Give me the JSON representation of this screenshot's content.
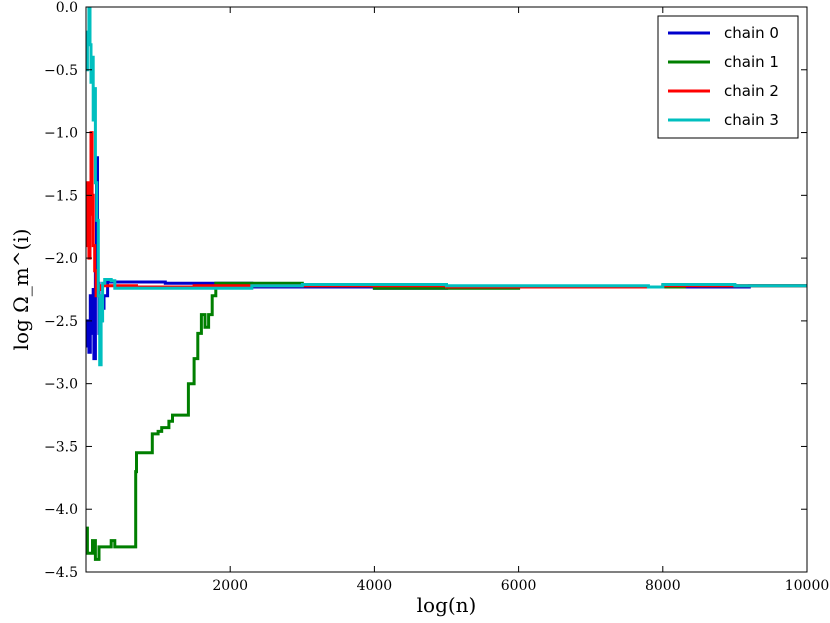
{
  "chart_data": {
    "type": "line",
    "xlabel": "log(n)",
    "ylabel": "log Ω_m^(i)",
    "xlim": [
      0,
      10000
    ],
    "ylim": [
      -4.5,
      0.0
    ],
    "xticks": [
      2000,
      4000,
      6000,
      8000,
      10000
    ],
    "xtick_labels": [
      "2000",
      "4000",
      "6000",
      "8000",
      "10000"
    ],
    "yticks": [
      0.0,
      -0.5,
      -1.0,
      -1.5,
      -2.0,
      -2.5,
      -3.0,
      -3.5,
      -4.0,
      -4.5
    ],
    "ytick_labels": [
      "0.0",
      "−0.5",
      "−1.0",
      "−1.5",
      "−2.0",
      "−2.5",
      "−3.0",
      "−3.5",
      "−4.0",
      "−4.5"
    ],
    "grid": false,
    "legend_position": "top-right",
    "series": [
      {
        "name": "chain 0",
        "color": "#0000cc",
        "points": [
          [
            0,
            -2.7
          ],
          [
            20,
            -2.5
          ],
          [
            40,
            -2.75
          ],
          [
            60,
            -2.3
          ],
          [
            80,
            -2.6
          ],
          [
            100,
            -2.25
          ],
          [
            110,
            -2.8
          ],
          [
            130,
            -2.0
          ],
          [
            145,
            -1.2
          ],
          [
            160,
            -2.2
          ],
          [
            180,
            -2.6
          ],
          [
            200,
            -2.5
          ],
          [
            220,
            -2.4
          ],
          [
            250,
            -2.3
          ],
          [
            300,
            -2.19
          ],
          [
            1000,
            -2.19
          ],
          [
            1100,
            -2.2
          ],
          [
            2000,
            -2.2
          ],
          [
            2300,
            -2.23
          ],
          [
            4000,
            -2.24
          ],
          [
            5000,
            -2.23
          ],
          [
            7000,
            -2.23
          ],
          [
            9200,
            -2.22
          ],
          [
            10000,
            -2.22
          ]
        ]
      },
      {
        "name": "chain 1",
        "color": "#007f00",
        "points": [
          [
            0,
            -4.15
          ],
          [
            20,
            -4.35
          ],
          [
            60,
            -4.35
          ],
          [
            90,
            -4.25
          ],
          [
            130,
            -4.4
          ],
          [
            180,
            -4.3
          ],
          [
            300,
            -4.3
          ],
          [
            350,
            -4.25
          ],
          [
            400,
            -4.3
          ],
          [
            650,
            -4.3
          ],
          [
            690,
            -3.7
          ],
          [
            700,
            -3.55
          ],
          [
            900,
            -3.55
          ],
          [
            920,
            -3.4
          ],
          [
            1000,
            -3.38
          ],
          [
            1050,
            -3.35
          ],
          [
            1150,
            -3.3
          ],
          [
            1200,
            -3.25
          ],
          [
            1400,
            -3.25
          ],
          [
            1420,
            -3.0
          ],
          [
            1500,
            -2.8
          ],
          [
            1550,
            -2.6
          ],
          [
            1600,
            -2.45
          ],
          [
            1650,
            -2.55
          ],
          [
            1700,
            -2.45
          ],
          [
            1750,
            -2.3
          ],
          [
            1800,
            -2.2
          ],
          [
            2000,
            -2.2
          ],
          [
            2900,
            -2.2
          ],
          [
            3000,
            -2.22
          ],
          [
            4000,
            -2.24
          ],
          [
            5000,
            -2.24
          ],
          [
            6000,
            -2.23
          ],
          [
            8300,
            -2.21
          ],
          [
            8500,
            -2.22
          ],
          [
            10000,
            -2.22
          ]
        ]
      },
      {
        "name": "chain 2",
        "color": "#ff0000",
        "points": [
          [
            0,
            -1.9
          ],
          [
            20,
            -1.4
          ],
          [
            40,
            -2.0
          ],
          [
            55,
            -1.65
          ],
          [
            70,
            -1.0
          ],
          [
            85,
            -1.5
          ],
          [
            100,
            -1.9
          ],
          [
            120,
            -2.1
          ],
          [
            140,
            -2.3
          ],
          [
            160,
            -2.25
          ],
          [
            200,
            -2.22
          ],
          [
            300,
            -2.22
          ],
          [
            700,
            -2.23
          ],
          [
            1500,
            -2.22
          ],
          [
            3000,
            -2.22
          ],
          [
            5000,
            -2.23
          ],
          [
            6900,
            -2.23
          ],
          [
            8000,
            -2.22
          ],
          [
            10000,
            -2.22
          ]
        ]
      },
      {
        "name": "chain 3",
        "color": "#00bfbf",
        "points": [
          [
            0,
            -0.5
          ],
          [
            20,
            -0.2
          ],
          [
            40,
            0.0
          ],
          [
            55,
            -0.3
          ],
          [
            70,
            -0.6
          ],
          [
            85,
            -0.4
          ],
          [
            100,
            -0.9
          ],
          [
            115,
            -0.65
          ],
          [
            130,
            -1.4
          ],
          [
            150,
            -1.7
          ],
          [
            170,
            -2.3
          ],
          [
            190,
            -2.85
          ],
          [
            210,
            -2.5
          ],
          [
            230,
            -2.2
          ],
          [
            260,
            -2.17
          ],
          [
            350,
            -2.18
          ],
          [
            400,
            -2.24
          ],
          [
            600,
            -2.24
          ],
          [
            2300,
            -2.22
          ],
          [
            3000,
            -2.21
          ],
          [
            5000,
            -2.22
          ],
          [
            7800,
            -2.23
          ],
          [
            8000,
            -2.21
          ],
          [
            9000,
            -2.22
          ],
          [
            10000,
            -2.22
          ]
        ]
      }
    ]
  }
}
